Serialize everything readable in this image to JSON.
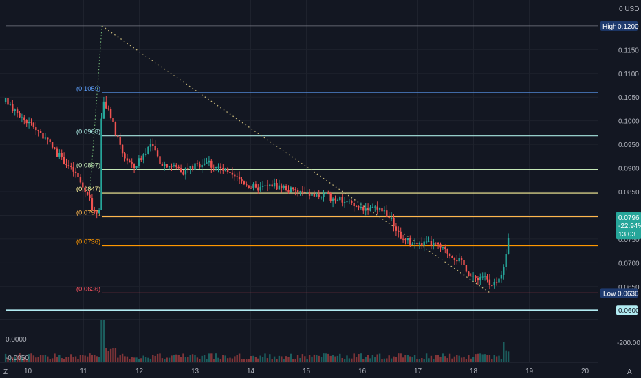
{
  "colors": {
    "background": "#131722",
    "grid": "#1e222d",
    "up": "#26a69a",
    "down": "#ef5350",
    "axis_text": "#b2b5be",
    "trend_line": "#c8b87a"
  },
  "currency_label": "0 USD",
  "high_marker": {
    "label": "High",
    "value": "0.1200",
    "bg": "#1e3a6e"
  },
  "low_marker": {
    "label": "Low",
    "value": "0.0636",
    "bg": "#1e3a6e"
  },
  "level_marker": {
    "value": "0.0600",
    "bg": "#b2ebf2"
  },
  "current_price_tag": {
    "price": "0.0796",
    "change": "-22.94%",
    "countdown": "13:03",
    "bg": "#26a69a"
  },
  "volume_axis_labels": [
    "0.0000",
    "-0.0050"
  ],
  "volume_right_label": "-200.00",
  "corner_left": "Z",
  "corner_right": "A",
  "chart_data": {
    "type": "candlestick",
    "x_ticks": [
      "10",
      "11",
      "12",
      "13",
      "14",
      "15",
      "16",
      "17",
      "18",
      "19",
      "20"
    ],
    "y_ticks": [
      "0.0650",
      "0.0700",
      "0.0750",
      "0.0800",
      "0.0850",
      "0.0900",
      "0.0950",
      "0.1000",
      "0.1050",
      "0.1100",
      "0.1150"
    ],
    "ylim": [
      0.058,
      0.1255
    ],
    "y_scale": "linear",
    "grid": true,
    "fib_levels": [
      {
        "label": "(0.1059)",
        "value": 0.1059,
        "color": "#5b9cf6"
      },
      {
        "label": "(0.0968)",
        "value": 0.0968,
        "color": "#a8e6e0"
      },
      {
        "label": "(0.0897)",
        "value": 0.0897,
        "color": "#c5e8b7"
      },
      {
        "label": "(0.0847)",
        "value": 0.0847,
        "color": "#fff59d"
      },
      {
        "label": "(0.0797)",
        "value": 0.0797,
        "color": "#ffb74d"
      },
      {
        "label": "(0.0736)",
        "value": 0.0736,
        "color": "#ff9800"
      },
      {
        "label": "(0.0636)",
        "value": 0.0636,
        "color": "#f7525f"
      }
    ],
    "horizontal_levels": [
      {
        "value": 0.12,
        "color": "#787b86"
      },
      {
        "value": 0.06,
        "color": "#b2ebf2"
      }
    ],
    "trend_line": {
      "from": {
        "day": 11.33,
        "price": 0.12
      },
      "to": {
        "day": 18.3,
        "price": 0.0636
      }
    },
    "last_price": 0.0796,
    "candle_path_days": [
      9.6,
      9.9,
      10.15,
      10.4,
      10.6,
      10.85,
      11.1,
      11.2,
      11.28,
      11.33,
      11.5,
      11.7,
      11.9,
      12.2,
      12.4,
      12.6,
      12.8,
      13.0,
      13.2,
      13.5,
      13.8,
      14.1,
      14.4,
      14.7,
      15.0,
      15.3,
      15.6,
      15.85,
      16.1,
      16.4,
      16.6,
      16.75,
      17.0,
      17.3,
      17.5,
      17.8,
      18.0,
      18.2,
      18.3,
      18.45,
      18.55,
      18.62,
      18.66
    ],
    "candle_path_prices": [
      0.104,
      0.1005,
      0.0985,
      0.095,
      0.092,
      0.089,
      0.0835,
      0.08,
      0.0815,
      0.105,
      0.1,
      0.093,
      0.09,
      0.095,
      0.091,
      0.0905,
      0.0895,
      0.0905,
      0.0915,
      0.0895,
      0.0875,
      0.0855,
      0.0865,
      0.0855,
      0.0845,
      0.084,
      0.0835,
      0.082,
      0.0815,
      0.081,
      0.0775,
      0.0745,
      0.074,
      0.074,
      0.0725,
      0.07,
      0.0665,
      0.0675,
      0.0648,
      0.066,
      0.07,
      0.075,
      0.0796
    ]
  }
}
